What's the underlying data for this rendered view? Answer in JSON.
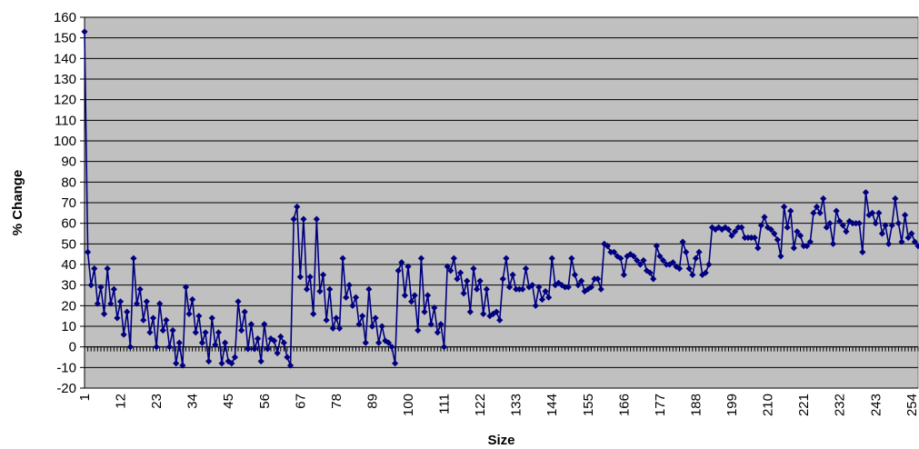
{
  "chart_data": {
    "type": "line",
    "xlabel": "Size",
    "ylabel": "% Change",
    "xlim": [
      1,
      256
    ],
    "ylim": [
      -20,
      160
    ],
    "y_ticks": [
      -20,
      -10,
      0,
      10,
      20,
      30,
      40,
      50,
      60,
      70,
      80,
      90,
      100,
      110,
      120,
      130,
      140,
      150,
      160
    ],
    "x_tick_labels": [
      "1",
      "12",
      "23",
      "34",
      "45",
      "56",
      "67",
      "78",
      "89",
      "100",
      "111",
      "122",
      "133",
      "144",
      "155",
      "166",
      "177",
      "188",
      "199",
      "210",
      "221",
      "232",
      "243",
      "254"
    ],
    "grid": true,
    "colors": {
      "plot_background": "#c0c0c0",
      "series": "#000080",
      "gridline": "#000000"
    },
    "series": [
      {
        "marker": "diamond",
        "x": [
          1,
          2,
          3,
          4,
          5,
          6,
          7,
          8,
          9,
          10,
          11,
          12,
          13,
          14,
          15,
          16,
          17,
          18,
          19,
          20,
          21,
          22,
          23,
          24,
          25,
          26,
          27,
          28,
          29,
          30,
          31,
          32,
          33,
          34,
          35,
          36,
          37,
          38,
          39,
          40,
          41,
          42,
          43,
          44,
          45,
          46,
          47,
          48,
          49,
          50,
          51,
          52,
          53,
          54,
          55,
          56,
          57,
          58,
          59,
          60,
          61,
          62,
          63,
          64,
          65,
          66,
          67,
          68,
          69,
          70,
          71,
          72,
          73,
          74,
          75,
          76,
          77,
          78,
          79,
          80,
          81,
          82,
          83,
          84,
          85,
          86,
          87,
          88,
          89,
          90,
          91,
          92,
          93,
          94,
          95,
          96,
          97,
          98,
          99,
          100,
          101,
          102,
          103,
          104,
          105,
          106,
          107,
          108,
          109,
          110,
          111,
          112,
          113,
          114,
          115,
          116,
          117,
          118,
          119,
          120,
          121,
          122,
          123,
          124,
          125,
          126,
          127,
          128,
          129,
          130,
          131,
          132,
          133,
          134,
          135,
          136,
          137,
          138,
          139,
          140,
          141,
          142,
          143,
          144,
          145,
          146,
          147,
          148,
          149,
          150,
          151,
          152,
          153,
          154,
          155,
          156,
          157,
          158,
          159,
          160,
          161,
          162,
          163,
          164,
          165,
          166,
          167,
          168,
          169,
          170,
          171,
          172,
          173,
          174,
          175,
          176,
          177,
          178,
          179,
          180,
          181,
          182,
          183,
          184,
          185,
          186,
          187,
          188,
          189,
          190,
          191,
          192,
          193,
          194,
          195,
          196,
          197,
          198,
          199,
          200,
          201,
          202,
          203,
          204,
          205,
          206,
          207,
          208,
          209,
          210,
          211,
          212,
          213,
          214,
          215,
          216,
          217,
          218,
          219,
          220,
          221,
          222,
          223,
          224,
          225,
          226,
          227,
          228,
          229,
          230,
          231,
          232,
          233,
          234,
          235,
          236,
          237,
          238,
          239,
          240,
          241,
          242,
          243,
          244,
          245,
          246,
          247,
          248,
          249,
          250,
          251,
          252,
          253,
          254,
          255,
          256
        ],
        "values": [
          153,
          46,
          30,
          38,
          21,
          29,
          16,
          38,
          21,
          28,
          14,
          22,
          6,
          17,
          0,
          43,
          21,
          28,
          13,
          22,
          7,
          14,
          0,
          21,
          8,
          13,
          0,
          8,
          -8,
          2,
          -9,
          29,
          16,
          23,
          7,
          15,
          2,
          7,
          -7,
          14,
          1,
          7,
          -8,
          2,
          -7,
          -8,
          -5,
          22,
          8,
          17,
          -1,
          11,
          -1,
          4,
          -7,
          11,
          -1,
          4,
          3,
          -3,
          5,
          2,
          -5,
          -9,
          62,
          68,
          34,
          62,
          28,
          34,
          16,
          62,
          27,
          35,
          13,
          28,
          9,
          14,
          9,
          43,
          24,
          30,
          20,
          24,
          11,
          15,
          2,
          28,
          10,
          14,
          2,
          10,
          3,
          2,
          0,
          -8,
          37,
          41,
          25,
          39,
          22,
          25,
          8,
          43,
          17,
          25,
          11,
          19,
          7,
          11,
          0,
          39,
          37,
          43,
          33,
          36,
          26,
          32,
          17,
          38,
          28,
          32,
          16,
          28,
          15,
          16,
          17,
          13,
          33,
          43,
          29,
          35,
          28,
          28,
          28,
          38,
          29,
          30,
          20,
          29,
          23,
          27,
          24,
          43,
          30,
          31,
          30,
          29,
          29,
          43,
          35,
          30,
          32,
          27,
          28,
          29,
          33,
          33,
          28,
          50,
          49,
          46,
          46,
          44,
          43,
          35,
          44,
          45,
          44,
          42,
          40,
          42,
          37,
          36,
          33,
          49,
          44,
          42,
          40,
          40,
          41,
          39,
          38,
          51,
          46,
          38,
          35,
          43,
          46,
          35,
          36,
          40,
          58,
          57,
          58,
          57,
          58,
          57,
          54,
          56,
          58,
          58,
          53,
          53,
          53,
          53,
          48,
          59,
          63,
          58,
          57,
          55,
          52,
          44,
          68,
          58,
          66,
          48,
          56,
          54,
          49,
          49,
          51,
          65,
          68,
          65,
          72,
          58,
          60,
          50,
          66,
          61,
          59,
          56,
          61,
          60,
          60,
          60,
          46,
          75,
          64,
          65,
          60,
          65,
          55,
          59,
          50,
          59,
          72,
          60,
          51,
          64,
          53,
          55,
          51,
          49
        ]
      }
    ]
  }
}
